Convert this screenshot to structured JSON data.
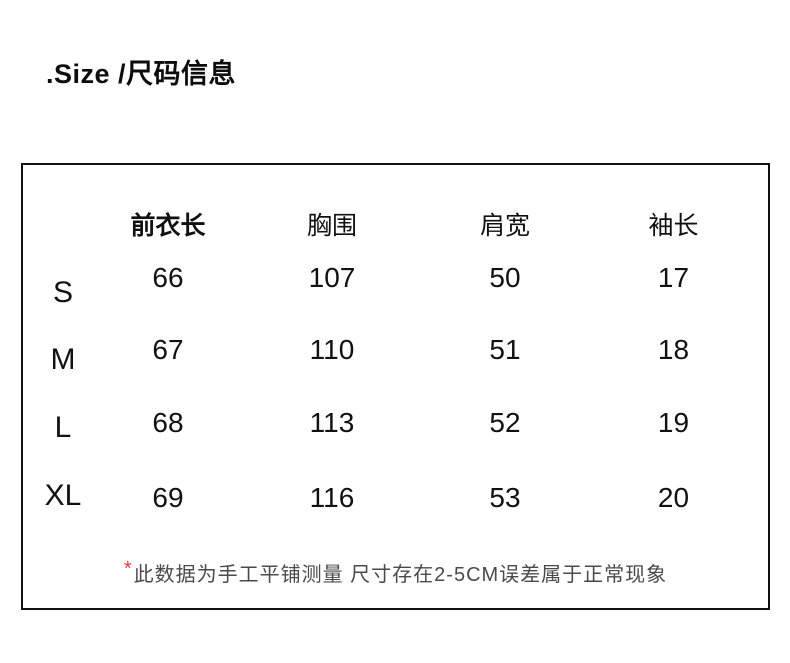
{
  "page": {
    "title": ".Size /尺码信息"
  },
  "size_table": {
    "columns": [
      "前衣长",
      "胸围",
      "肩宽",
      "袖长"
    ],
    "rows": [
      {
        "size": "S",
        "values": [
          "66",
          "107",
          "50",
          "17"
        ]
      },
      {
        "size": "M",
        "values": [
          "67",
          "110",
          "51",
          "18"
        ]
      },
      {
        "size": "L",
        "values": [
          "68",
          "113",
          "52",
          "19"
        ]
      },
      {
        "size": "XL",
        "values": [
          "69",
          "116",
          "53",
          "20"
        ]
      }
    ],
    "footnote": {
      "marker": "*",
      "text": "此数据为手工平铺测量 尺寸存在2-5CM误差属于正常现象"
    }
  },
  "colors": {
    "text": "#111111",
    "border": "#101010",
    "footnote_text": "#4a4a4a",
    "footnote_marker": "#e23a3a",
    "background": "#ffffff"
  }
}
